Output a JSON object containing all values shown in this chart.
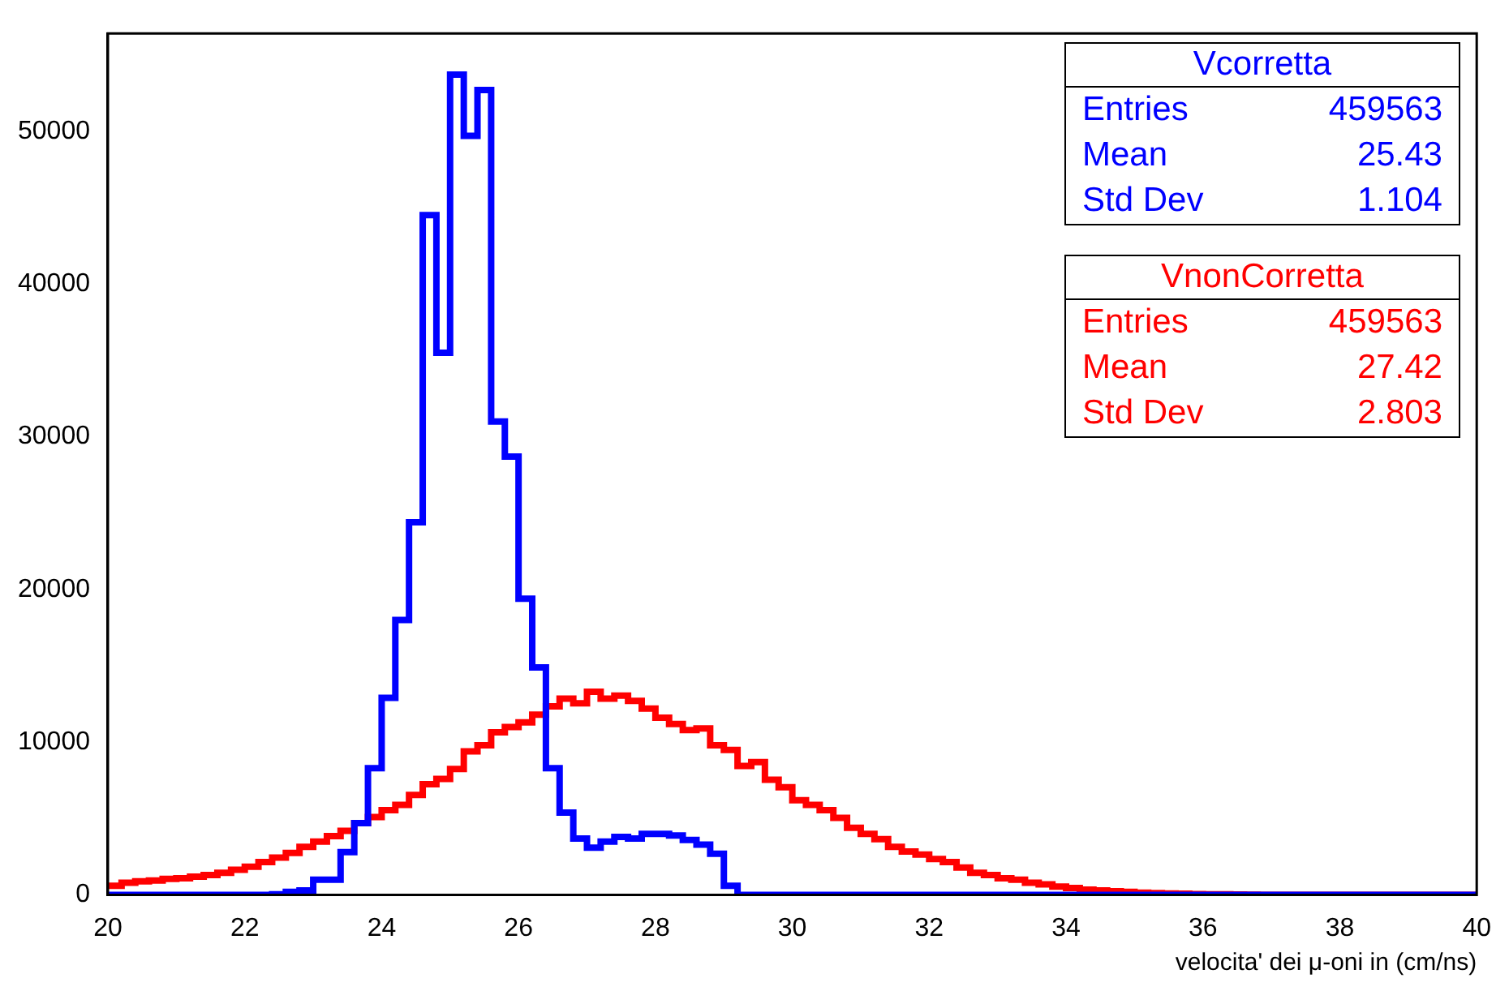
{
  "chart_data": {
    "type": "histogram",
    "xlabel": "velocita' dei μ-oni in (cm/ns)",
    "bins": [
      20,
      20.2,
      20.4,
      20.6,
      20.8,
      21,
      21.2,
      21.4,
      21.6,
      21.8,
      22,
      22.2,
      22.4,
      22.6,
      22.8,
      23,
      23.2,
      23.4,
      23.6,
      23.8,
      24,
      24.2,
      24.4,
      24.6,
      24.8,
      25,
      25.2,
      25.4,
      25.6,
      25.8,
      26,
      26.2,
      26.4,
      26.6,
      26.8,
      27,
      27.2,
      27.4,
      27.6,
      27.8,
      28,
      28.2,
      28.4,
      28.6,
      28.8,
      29,
      29.2,
      29.4,
      29.6,
      29.8,
      30,
      30.2,
      30.4,
      30.6,
      30.8,
      31,
      31.2,
      31.4,
      31.6,
      31.8,
      32,
      32.2,
      32.4,
      32.6,
      32.8,
      33,
      33.2,
      33.4,
      33.6,
      33.8,
      34,
      34.2,
      34.4,
      34.6,
      34.8,
      35,
      35.2,
      35.4,
      35.6,
      35.8,
      36,
      36.2,
      36.4,
      36.6,
      36.8,
      37,
      37.2,
      37.4,
      37.6,
      37.8,
      38,
      38.2,
      38.4,
      38.6,
      38.8,
      39,
      39.2,
      39.4,
      39.6,
      39.8,
      40
    ],
    "series": [
      {
        "name": "Vcorretta",
        "color": "#0000ff",
        "values": [
          0,
          0,
          0,
          0,
          0,
          0,
          0,
          0,
          0,
          0,
          0,
          0,
          50,
          200,
          300,
          1000,
          1000,
          2800,
          4700,
          8300,
          12900,
          18000,
          24400,
          44500,
          35500,
          53700,
          49700,
          52700,
          31000,
          28700,
          19400,
          14900,
          8300,
          5400,
          3700,
          3100,
          3500,
          3800,
          3700,
          4000,
          4000,
          3900,
          3600,
          3300,
          2700,
          600,
          0,
          0,
          0,
          0,
          0,
          0,
          0,
          0,
          0,
          0,
          0,
          0,
          0,
          0,
          0,
          0,
          0,
          0,
          0,
          0,
          0,
          0,
          0,
          0,
          0,
          0,
          0,
          0,
          0,
          0,
          0,
          0,
          0,
          0,
          0,
          0,
          0,
          0,
          0,
          0,
          0,
          0,
          0,
          0,
          0,
          0,
          0,
          0,
          0,
          0,
          0,
          0,
          0,
          0
        ]
      },
      {
        "name": "VnonCorretta",
        "color": "#ff0000",
        "values": [
          600,
          800,
          900,
          950,
          1050,
          1100,
          1200,
          1300,
          1450,
          1650,
          1850,
          2150,
          2450,
          2750,
          3150,
          3500,
          3850,
          4200,
          4700,
          5100,
          5550,
          5900,
          6550,
          7250,
          7600,
          8250,
          9400,
          9800,
          10650,
          11000,
          11300,
          11800,
          12350,
          12850,
          12550,
          13300,
          12850,
          13050,
          12700,
          12200,
          11600,
          11200,
          10800,
          10900,
          9800,
          9500,
          8450,
          8700,
          7550,
          7050,
          6200,
          5900,
          5550,
          5050,
          4400,
          4000,
          3650,
          3150,
          2850,
          2650,
          2350,
          2150,
          1800,
          1450,
          1300,
          1100,
          1000,
          800,
          700,
          550,
          450,
          350,
          300,
          250,
          200,
          150,
          120,
          100,
          80,
          60,
          50,
          40,
          30,
          20,
          0,
          0,
          0,
          0,
          0,
          0,
          0,
          0,
          0,
          0,
          0,
          0,
          0,
          0,
          0,
          0
        ]
      }
    ],
    "annotations": [
      "Entries 459563",
      "Mean 25.43",
      "Std Dev 1.104",
      "Entries 459563",
      "Mean 27.42",
      "Std Dev 2.803"
    ],
    "xlim": [
      20,
      40
    ],
    "xticks": [
      20,
      22,
      24,
      26,
      28,
      30,
      32,
      34,
      36,
      38,
      40
    ],
    "ylim": [
      0,
      56400
    ],
    "yticks": [
      0,
      10000,
      20000,
      30000,
      40000,
      50000
    ],
    "legend": "top right",
    "grid": false
  }
}
